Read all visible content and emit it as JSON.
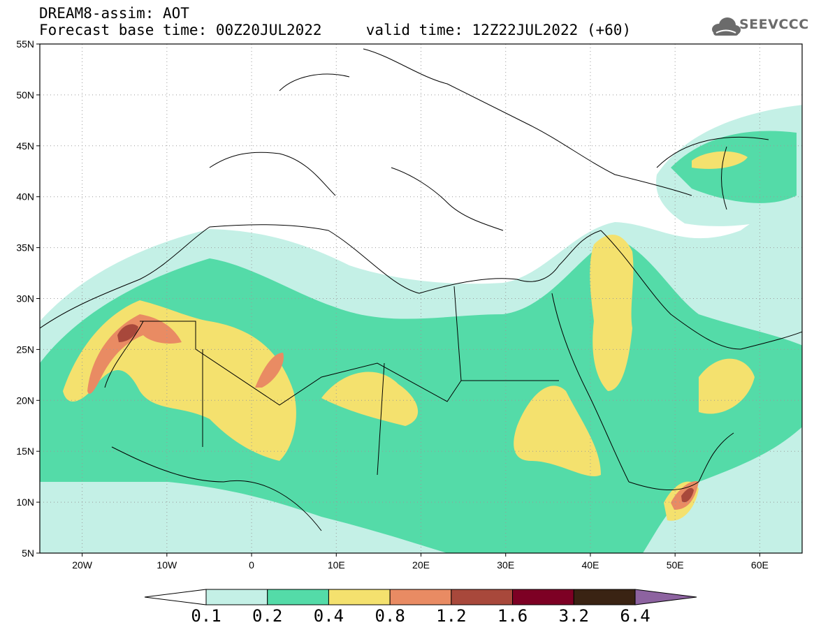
{
  "header": {
    "line1": "DREAM8-assim: AOT",
    "line2": "Forecast base time: 00Z20JUL2022     valid time: 12Z22JUL2022 (+60)"
  },
  "logo": {
    "text": "SEEVCCC",
    "icon": "cloud-icon"
  },
  "map": {
    "lat_ticks": [
      "55N",
      "50N",
      "45N",
      "40N",
      "35N",
      "30N",
      "25N",
      "20N",
      "15N",
      "10N",
      "5N"
    ],
    "lon_ticks": [
      "20W",
      "10W",
      "0",
      "10E",
      "20E",
      "30E",
      "40E",
      "50E",
      "60E"
    ],
    "extent": {
      "lon_min": -25,
      "lon_max": 65,
      "lat_min": 5,
      "lat_max": 55
    }
  },
  "colorbar": {
    "labels": [
      "0.1",
      "0.2",
      "0.4",
      "0.8",
      "1.2",
      "1.6",
      "3.2",
      "6.4"
    ],
    "colors": [
      "#ffffff",
      "#c4f0e6",
      "#54dba8",
      "#f4e16e",
      "#e98b63",
      "#a8483b",
      "#7d0024",
      "#3a2313",
      "#8d63a0"
    ]
  }
}
